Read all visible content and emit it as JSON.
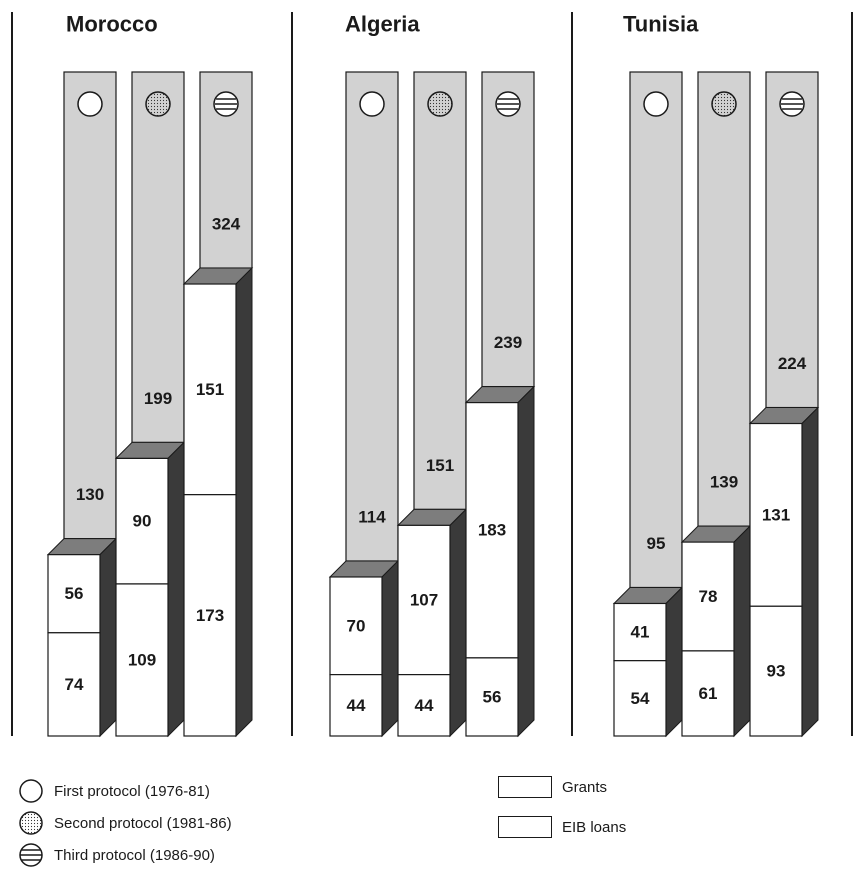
{
  "chart_data": {
    "type": "bar",
    "variant": "stacked-3d",
    "countries": [
      {
        "name": "Morocco",
        "protocols": [
          {
            "total": 130,
            "grants": 56,
            "eib_loans": 74
          },
          {
            "total": 199,
            "grants": 90,
            "eib_loans": 109
          },
          {
            "total": 324,
            "grants": 151,
            "eib_loans": 173
          }
        ]
      },
      {
        "name": "Algeria",
        "protocols": [
          {
            "total": 114,
            "grants": 70,
            "eib_loans": 44
          },
          {
            "total": 151,
            "grants": 107,
            "eib_loans": 44
          },
          {
            "total": 239,
            "grants": 183,
            "eib_loans": 56
          }
        ]
      },
      {
        "name": "Tunisia",
        "protocols": [
          {
            "total": 95,
            "grants": 41,
            "eib_loans": 54
          },
          {
            "total": 139,
            "grants": 78,
            "eib_loans": 61
          },
          {
            "total": 224,
            "grants": 131,
            "eib_loans": 93
          }
        ]
      }
    ],
    "protocol_legend": [
      {
        "label": "First protocol (1976-81)",
        "icon": "open-circle-icon"
      },
      {
        "label": "Second protocol (1981-86)",
        "icon": "dotted-circle-icon"
      },
      {
        "label": "Third protocol (1986-90)",
        "icon": "striped-circle-icon"
      }
    ],
    "component_legend": [
      {
        "label": "Grants"
      },
      {
        "label": "EIB loans"
      }
    ],
    "colors": {
      "column_background": "#d2d2d2",
      "bar_face": "#ffffff",
      "bar_top": "#7d7d7d",
      "bar_side": "#3a3a3a",
      "ink": "#1a1a1a"
    }
  }
}
